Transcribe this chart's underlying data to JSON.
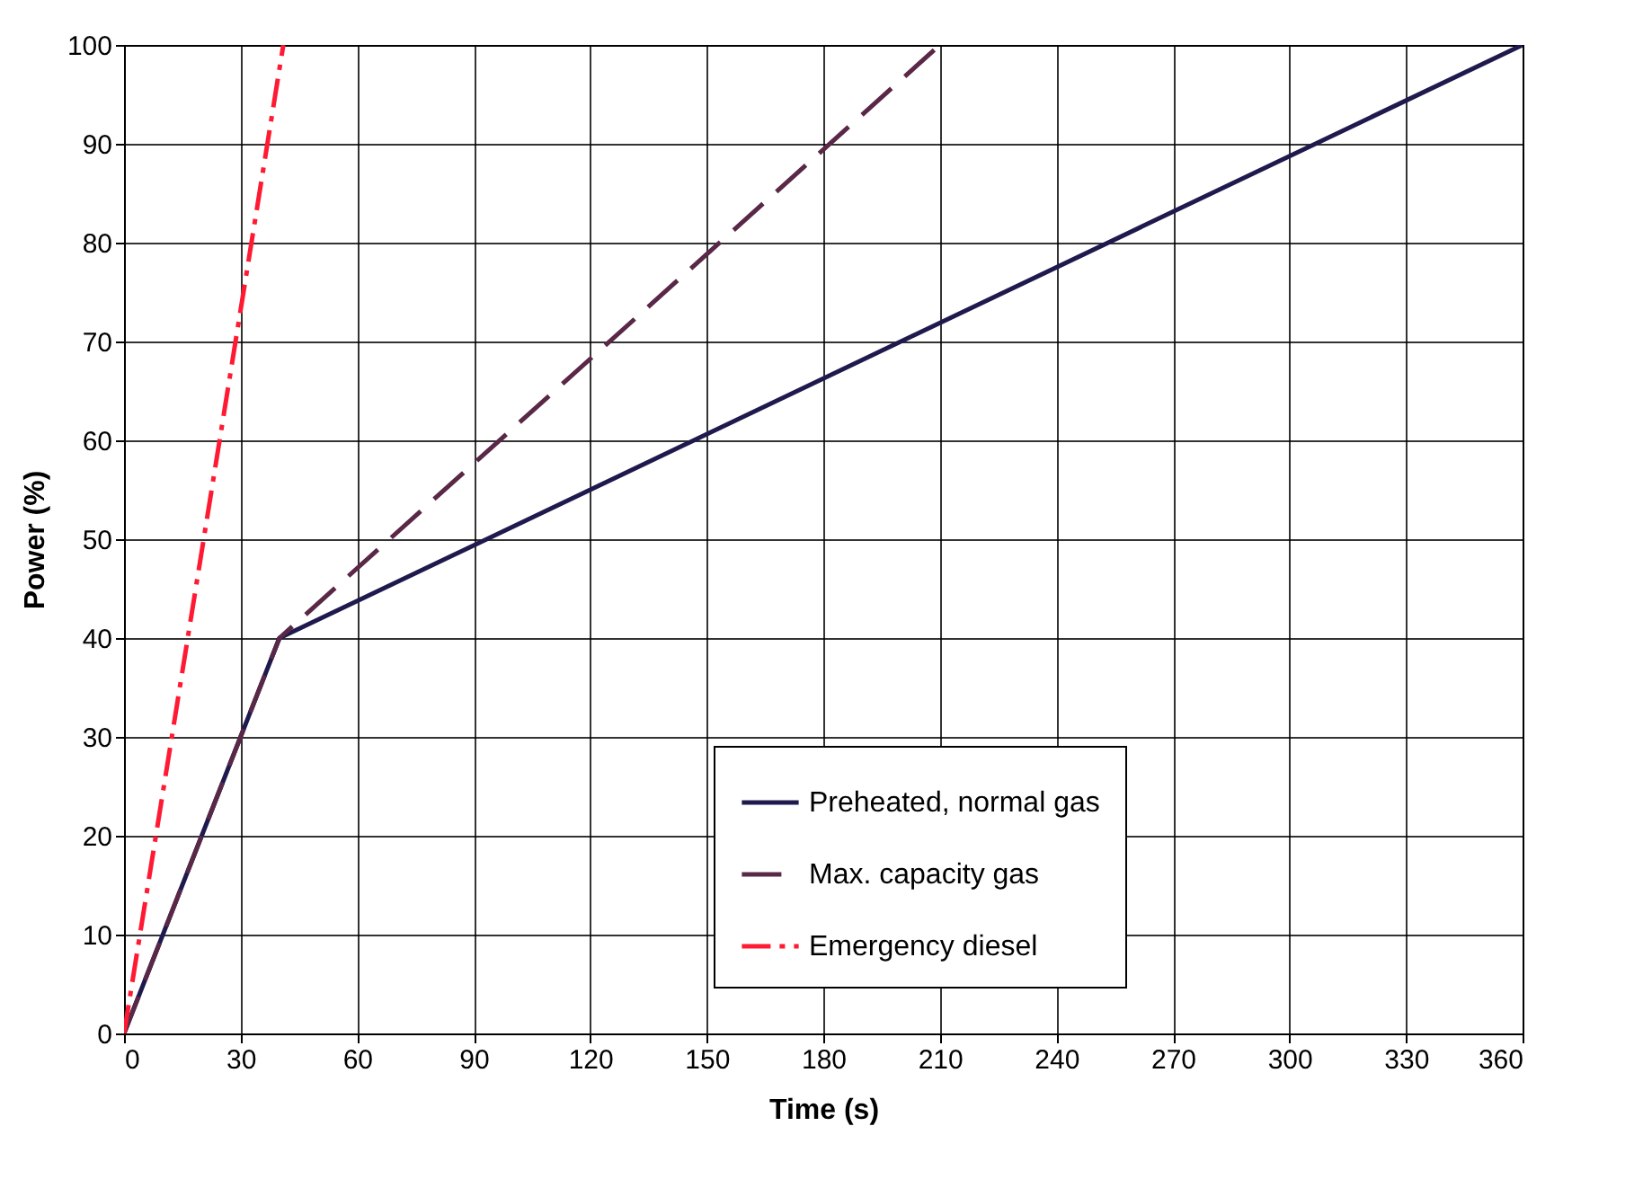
{
  "chart_data": {
    "type": "line",
    "xlabel": "Time (s)",
    "ylabel": "Power (%)",
    "xlim": [
      0,
      360
    ],
    "xticks": [
      0,
      30,
      60,
      90,
      120,
      150,
      180,
      210,
      240,
      270,
      300,
      330,
      360
    ],
    "ylim": [
      0,
      100
    ],
    "yticks": [
      0,
      10,
      20,
      30,
      40,
      50,
      60,
      70,
      80,
      90,
      100
    ],
    "grid": true,
    "legend": "bottom right",
    "series": [
      {
        "name": "Preheated, normal gas",
        "color": "#1f1a4d",
        "line_style": "solid",
        "x": [
          0,
          40,
          360
        ],
        "values": [
          0,
          40,
          100
        ]
      },
      {
        "name": "Max. capacity gas",
        "color": "#5a2847",
        "line_style": "dashed",
        "x": [
          0,
          40,
          210
        ],
        "values": [
          0,
          40,
          100
        ]
      },
      {
        "name": "Emergency diesel",
        "color": "#ff1a33",
        "line_style": "dashdot",
        "x": [
          0,
          41
        ],
        "values": [
          0,
          100
        ]
      }
    ]
  }
}
